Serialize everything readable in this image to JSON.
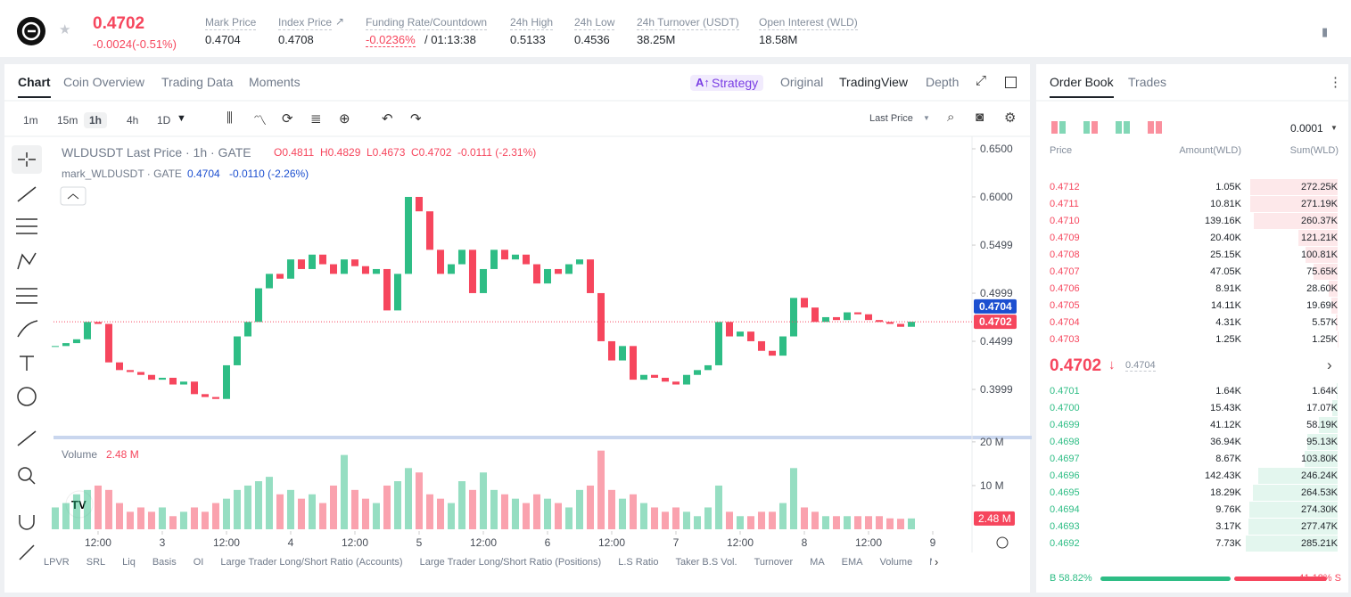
{
  "header": {
    "price": "0.4702",
    "change": "-0.0024(-0.51%)",
    "stats": [
      {
        "label": "Mark Price",
        "value": "0.4704"
      },
      {
        "label": "Index Price",
        "value": "0.4708"
      },
      {
        "label": "Funding Rate/Countdown",
        "value": "-0.0236%",
        "extra": "/ 01:13:38"
      },
      {
        "label": "24h High",
        "value": "0.5133"
      },
      {
        "label": "24h Low",
        "value": "0.4536"
      },
      {
        "label": "24h Turnover (USDT)",
        "value": "38.25M"
      },
      {
        "label": "Open Interest (WLD)",
        "value": "18.58M"
      }
    ]
  },
  "chart_tabs": [
    "Chart",
    "Coin Overview",
    "Trading Data",
    "Moments"
  ],
  "view_tabs": [
    "Strategy",
    "Original",
    "TradingView",
    "Depth"
  ],
  "intervals": [
    "1m",
    "15m",
    "1h",
    "4h",
    "1D"
  ],
  "price_source": "Last Price",
  "indicators": [
    "LPVR",
    "SRL",
    "Liq",
    "Basis",
    "OI",
    "Large Trader Long/Short Ratio (Accounts)",
    "Large Trader Long/Short Ratio (Positions)",
    "L.S Ratio",
    "Taker B.S Vol.",
    "Turnover",
    "MA",
    "EMA",
    "Volume",
    "MACD"
  ],
  "chart_data": {
    "type": "candlestick",
    "title": "WLDUSDT Last Price · 1h · GATE",
    "ohlc_legend": [
      "O0.4811",
      "H0.4829",
      "L0.4673",
      "C0.4702",
      "-0.0111 (-2.31%)"
    ],
    "mark_legend": {
      "title": "mark_WLDUSDT · GATE",
      "price": "0.4704",
      "change": "-0.0110 (-2.26%)"
    },
    "up_color": "#2ebd85",
    "down_color": "#f6465d",
    "x": [
      -20,
      -18,
      -16,
      -14,
      -12,
      -10,
      -8,
      -6,
      -4,
      -2,
      0,
      2,
      4,
      6,
      8,
      10,
      12,
      14,
      16,
      18,
      20,
      22,
      24,
      26,
      28,
      30,
      32,
      34,
      36,
      38,
      40,
      42,
      44,
      46,
      48,
      50,
      52,
      54,
      56,
      58,
      60,
      62,
      64,
      66,
      68,
      70,
      72,
      74,
      76,
      78,
      80,
      82,
      84,
      86,
      88,
      90,
      92,
      94,
      96,
      98,
      100,
      102,
      104,
      106,
      108,
      110,
      112,
      114,
      116,
      118,
      120,
      122,
      124,
      126,
      128,
      130,
      132,
      134,
      136,
      138,
      140
    ],
    "close": [
      0.445,
      0.448,
      0.452,
      0.47,
      0.468,
      0.428,
      0.42,
      0.418,
      0.415,
      0.41,
      0.412,
      0.405,
      0.408,
      0.395,
      0.392,
      0.39,
      0.425,
      0.455,
      0.47,
      0.505,
      0.52,
      0.515,
      0.535,
      0.525,
      0.54,
      0.53,
      0.52,
      0.535,
      0.528,
      0.52,
      0.525,
      0.482,
      0.52,
      0.6,
      0.585,
      0.545,
      0.52,
      0.53,
      0.545,
      0.5,
      0.525,
      0.545,
      0.535,
      0.54,
      0.53,
      0.51,
      0.525,
      0.52,
      0.53,
      0.535,
      0.5,
      0.45,
      0.43,
      0.445,
      0.41,
      0.415,
      0.412,
      0.408,
      0.405,
      0.415,
      0.42,
      0.425,
      0.47,
      0.455,
      0.46,
      0.45,
      0.44,
      0.435,
      0.455,
      0.495,
      0.485,
      0.47,
      0.475,
      0.472,
      0.48,
      0.478,
      0.472,
      0.47,
      0.468,
      0.465,
      0.4702
    ],
    "xlim": [
      -20.33,
      150.5
    ],
    "xticks": [
      {
        "value": -12,
        "label": "12:00"
      },
      {
        "value": 0,
        "label": "3"
      },
      {
        "value": 12,
        "label": "12:00"
      },
      {
        "value": 24,
        "label": "4"
      },
      {
        "value": 36,
        "label": "12:00"
      },
      {
        "value": 48,
        "label": "5"
      },
      {
        "value": 60,
        "label": "12:00"
      },
      {
        "value": 72,
        "label": "6"
      },
      {
        "value": 84,
        "label": "12:00"
      },
      {
        "value": 96,
        "label": "7"
      },
      {
        "value": 108,
        "label": "12:00"
      },
      {
        "value": 120,
        "label": "8"
      },
      {
        "value": 132,
        "label": "12:00"
      },
      {
        "value": 144,
        "label": "9"
      }
    ],
    "ylim": [
      0.3527,
      0.6611
    ],
    "yticks": [
      {
        "value": 0.65,
        "label": "0.6500"
      },
      {
        "value": 0.6,
        "label": "0.6000"
      },
      0.5499,
      0.4999,
      0.4499,
      0.3999
    ],
    "last_price": 0.4702,
    "mark_price": 0.4704,
    "volume": {
      "title": "Volume",
      "last": {
        "value": 2.48,
        "label": "2.48 M"
      },
      "values": [
        5,
        6,
        8,
        9,
        10,
        9,
        6,
        4,
        5,
        4,
        5,
        3,
        4,
        5,
        4,
        6,
        7,
        9,
        10,
        11,
        12,
        8,
        9,
        7,
        8,
        6,
        10,
        17,
        9,
        7,
        6,
        10,
        11,
        14,
        13,
        8,
        7,
        6,
        11,
        9,
        13,
        9,
        8,
        7,
        6,
        8,
        7,
        6,
        5,
        9,
        10,
        18,
        9,
        7,
        8,
        6,
        5,
        4,
        5,
        4,
        3,
        5,
        10,
        4,
        3,
        3,
        4,
        4,
        6,
        14,
        5,
        4,
        3,
        3,
        3,
        3,
        3,
        3,
        2.5,
        2.4,
        2.48
      ],
      "ylim": [
        0,
        21.2
      ],
      "yticks": [
        {
          "value": 20,
          "label": "20 M"
        },
        {
          "value": 10,
          "label": "10 M"
        }
      ]
    }
  },
  "order_book": {
    "tabs": [
      "Order Book",
      "Trades"
    ],
    "precision": "0.0001",
    "columns": [
      "Price",
      "Amount(WLD)",
      "Sum(WLD)"
    ],
    "asks": [
      [
        "0.4712",
        "1.05K",
        "272.25K"
      ],
      [
        "0.4711",
        "10.81K",
        "271.19K"
      ],
      [
        "0.4710",
        "139.16K",
        "260.37K"
      ],
      [
        "0.4709",
        "20.40K",
        "121.21K"
      ],
      [
        "0.4708",
        "25.15K",
        "100.81K"
      ],
      [
        "0.4707",
        "47.05K",
        "75.65K"
      ],
      [
        "0.4706",
        "8.91K",
        "28.60K"
      ],
      [
        "0.4705",
        "14.11K",
        "19.69K"
      ],
      [
        "0.4704",
        "4.31K",
        "5.57K"
      ],
      [
        "0.4703",
        "1.25K",
        "1.25K"
      ]
    ],
    "last": "0.4702",
    "mark": "0.4704",
    "bids": [
      [
        "0.4701",
        "1.64K",
        "1.64K"
      ],
      [
        "0.4700",
        "15.43K",
        "17.07K"
      ],
      [
        "0.4699",
        "41.12K",
        "58.19K"
      ],
      [
        "0.4698",
        "36.94K",
        "95.13K"
      ],
      [
        "0.4697",
        "8.67K",
        "103.80K"
      ],
      [
        "0.4696",
        "142.43K",
        "246.24K"
      ],
      [
        "0.4695",
        "18.29K",
        "264.53K"
      ],
      [
        "0.4694",
        "9.76K",
        "274.30K"
      ],
      [
        "0.4693",
        "3.17K",
        "277.47K"
      ],
      [
        "0.4692",
        "7.73K",
        "285.21K"
      ]
    ],
    "buy_ratio": {
      "value": 58.82,
      "label": "B 58.82%"
    },
    "sell_ratio": {
      "value": 41.18,
      "label": "41.18% S"
    }
  }
}
